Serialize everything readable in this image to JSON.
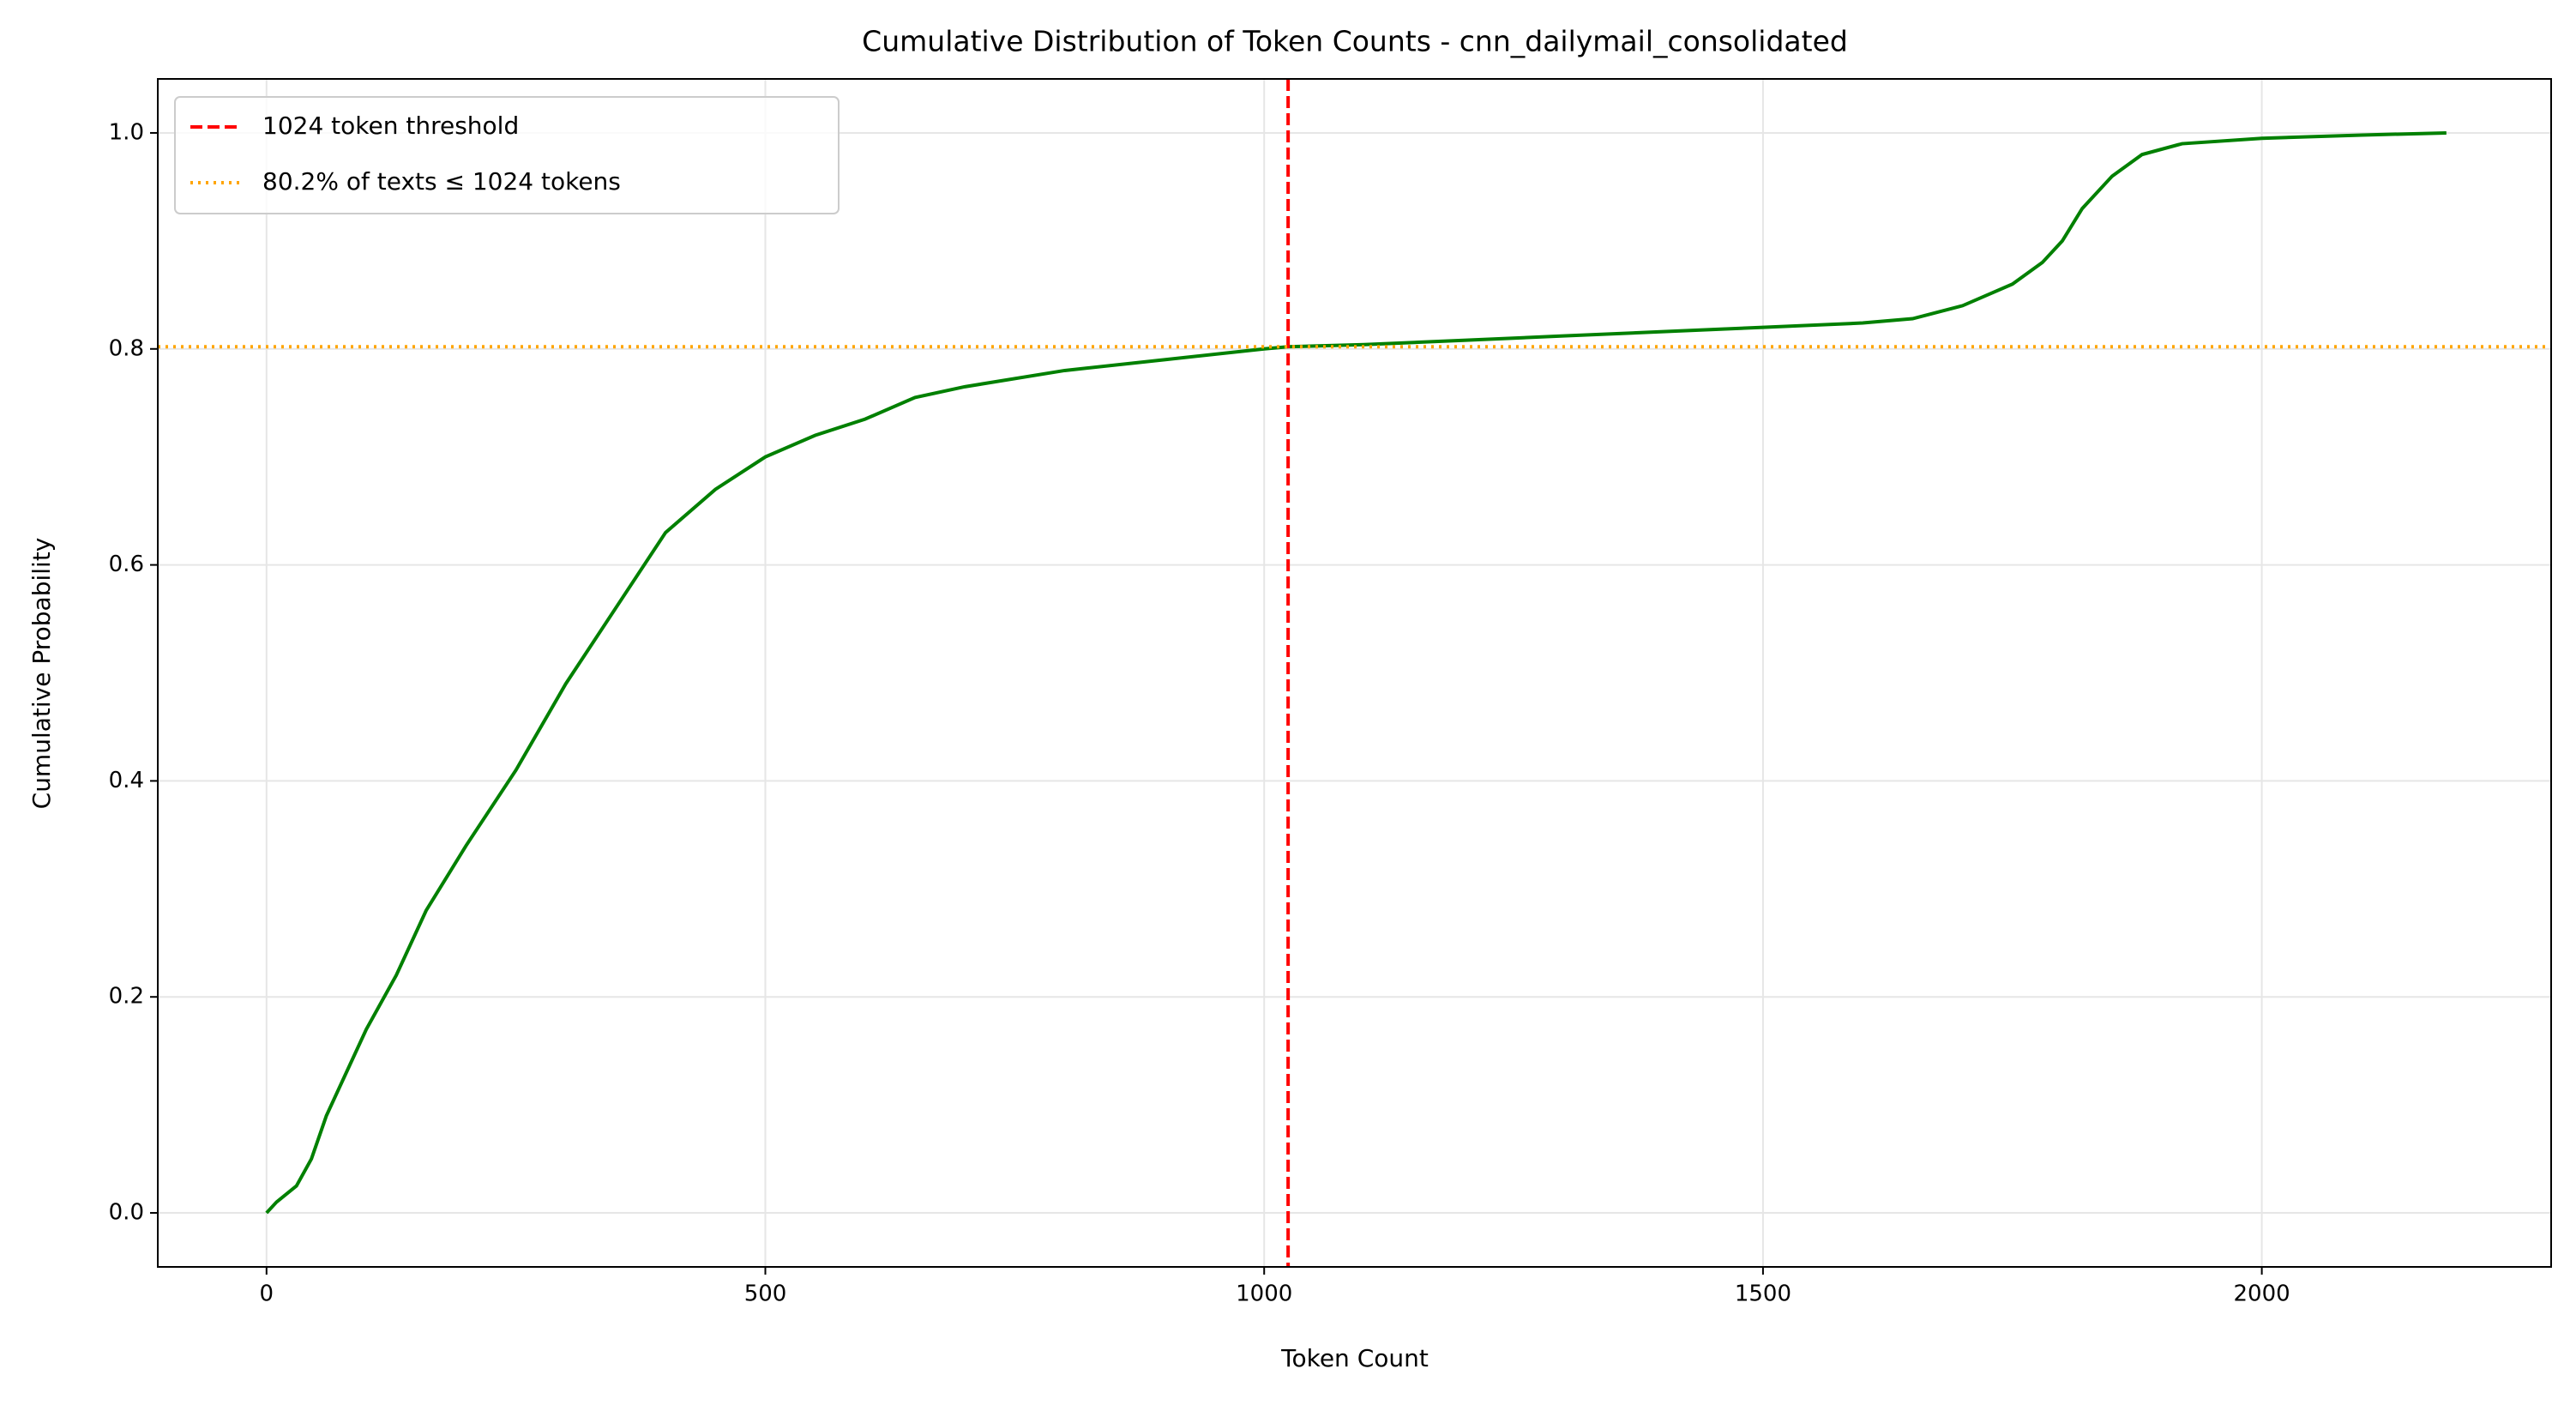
{
  "chart_data": {
    "type": "line",
    "title": "Cumulative Distribution of Token Counts - cnn_dailymail_consolidated",
    "x_label": "Token Count",
    "y_label": "Cumulative Probability",
    "x": [
      0,
      10,
      30,
      45,
      60,
      80,
      100,
      130,
      160,
      200,
      250,
      300,
      350,
      400,
      450,
      500,
      550,
      600,
      650,
      700,
      800,
      900,
      1000,
      1024,
      1100,
      1200,
      1300,
      1400,
      1500,
      1600,
      1650,
      1700,
      1750,
      1780,
      1800,
      1820,
      1850,
      1880,
      1920,
      2000,
      2100,
      2185
    ],
    "series": [
      {
        "color": "#008000",
        "values": [
          0,
          0.01,
          0.025,
          0.05,
          0.09,
          0.13,
          0.17,
          0.22,
          0.28,
          0.34,
          0.41,
          0.49,
          0.56,
          0.63,
          0.67,
          0.7,
          0.72,
          0.735,
          0.755,
          0.765,
          0.78,
          0.79,
          0.8,
          0.802,
          0.804,
          0.808,
          0.812,
          0.816,
          0.82,
          0.824,
          0.828,
          0.84,
          0.86,
          0.88,
          0.9,
          0.93,
          0.96,
          0.98,
          0.99,
          0.995,
          0.998,
          1.0
        ]
      }
    ],
    "reference_lines": [
      {
        "axis": "x",
        "value": 1024,
        "label": "1024 token threshold",
        "color": "#ff0000",
        "style": "dashed"
      },
      {
        "axis": "y",
        "value": 0.802,
        "label": "80.2% of texts ≤ 1024 tokens",
        "color": "#ffa500",
        "style": "dotted"
      }
    ],
    "xlim": [
      -109,
      2290
    ],
    "ylim": [
      -0.05,
      1.05
    ],
    "xticks": [
      0,
      500,
      1000,
      1500,
      2000
    ],
    "yticks": [
      {
        "value": 0,
        "label": "0.0"
      },
      0.2,
      0.4,
      0.6,
      0.8,
      {
        "value": 1,
        "label": "1.0"
      }
    ],
    "grid": true,
    "legend": "upper left"
  }
}
